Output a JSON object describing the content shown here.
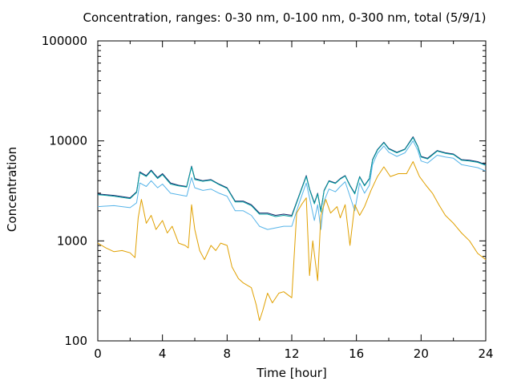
{
  "chart_data": {
    "type": "line",
    "title": "Concentration, ranges: 0-30 nm, 0-100 nm, 0-300 nm, total (5/9/1)",
    "xlabel": "Time [hour]",
    "ylabel": "Concentration",
    "xlim": [
      0,
      24
    ],
    "ylim": [
      100,
      100000
    ],
    "yscale": "log",
    "xticks": [
      "0",
      "4",
      "8",
      "12",
      "16",
      "20",
      "24"
    ],
    "yticks": [
      "100",
      "1000",
      "10000",
      "100000"
    ],
    "grid": false,
    "series": [
      {
        "color": "#1a2a6c",
        "points": [
          [
            0,
            2950
          ],
          [
            1,
            2850
          ],
          [
            2,
            2700
          ],
          [
            2.4,
            3100
          ],
          [
            2.6,
            4900
          ],
          [
            3,
            4500
          ],
          [
            3.3,
            5100
          ],
          [
            3.7,
            4300
          ],
          [
            4,
            4700
          ],
          [
            4.5,
            3800
          ],
          [
            5,
            3600
          ],
          [
            5.5,
            3500
          ],
          [
            5.8,
            5600
          ],
          [
            6,
            4200
          ],
          [
            6.5,
            4000
          ],
          [
            7,
            4100
          ],
          [
            7.5,
            3700
          ],
          [
            8,
            3400
          ],
          [
            8.5,
            2500
          ],
          [
            9,
            2500
          ],
          [
            9.5,
            2300
          ],
          [
            10,
            1900
          ],
          [
            10.5,
            1900
          ],
          [
            11,
            1800
          ],
          [
            11.5,
            1850
          ],
          [
            12,
            1800
          ],
          [
            12.5,
            3000
          ],
          [
            12.9,
            4500
          ],
          [
            13.1,
            3300
          ],
          [
            13.4,
            2400
          ],
          [
            13.6,
            3000
          ],
          [
            13.8,
            2000
          ],
          [
            14,
            3200
          ],
          [
            14.3,
            4000
          ],
          [
            14.7,
            3800
          ],
          [
            15,
            4200
          ],
          [
            15.3,
            4500
          ],
          [
            15.6,
            3600
          ],
          [
            15.9,
            3000
          ],
          [
            16.2,
            4400
          ],
          [
            16.5,
            3600
          ],
          [
            16.8,
            4200
          ],
          [
            17,
            6500
          ],
          [
            17.3,
            8200
          ],
          [
            17.7,
            9700
          ],
          [
            18,
            8400
          ],
          [
            18.5,
            7700
          ],
          [
            19,
            8300
          ],
          [
            19.5,
            11000
          ],
          [
            19.8,
            8800
          ],
          [
            20,
            7000
          ],
          [
            20.4,
            6700
          ],
          [
            21,
            8000
          ],
          [
            21.5,
            7600
          ],
          [
            22,
            7400
          ],
          [
            22.5,
            6500
          ],
          [
            23,
            6400
          ],
          [
            23.5,
            6200
          ],
          [
            24,
            5800
          ]
        ]
      },
      {
        "color": "#00a0a0",
        "points": [
          [
            0,
            2900
          ],
          [
            1,
            2800
          ],
          [
            2,
            2650
          ],
          [
            2.4,
            3050
          ],
          [
            2.6,
            4800
          ],
          [
            3,
            4400
          ],
          [
            3.3,
            5000
          ],
          [
            3.7,
            4200
          ],
          [
            4,
            4600
          ],
          [
            4.5,
            3700
          ],
          [
            5,
            3550
          ],
          [
            5.5,
            3450
          ],
          [
            5.8,
            5500
          ],
          [
            6,
            4100
          ],
          [
            6.5,
            3950
          ],
          [
            7,
            4050
          ],
          [
            7.5,
            3650
          ],
          [
            8,
            3350
          ],
          [
            8.5,
            2450
          ],
          [
            9,
            2450
          ],
          [
            9.5,
            2250
          ],
          [
            10,
            1850
          ],
          [
            10.5,
            1850
          ],
          [
            11,
            1750
          ],
          [
            11.5,
            1800
          ],
          [
            12,
            1750
          ],
          [
            12.5,
            2950
          ],
          [
            12.9,
            4400
          ],
          [
            13.1,
            3250
          ],
          [
            13.4,
            2350
          ],
          [
            13.6,
            2950
          ],
          [
            13.8,
            1950
          ],
          [
            14,
            3150
          ],
          [
            14.3,
            3950
          ],
          [
            14.7,
            3750
          ],
          [
            15,
            4150
          ],
          [
            15.3,
            4450
          ],
          [
            15.6,
            3550
          ],
          [
            15.9,
            2950
          ],
          [
            16.2,
            4350
          ],
          [
            16.5,
            3550
          ],
          [
            16.8,
            4150
          ],
          [
            17,
            6400
          ],
          [
            17.3,
            8100
          ],
          [
            17.7,
            9600
          ],
          [
            18,
            8300
          ],
          [
            18.5,
            7600
          ],
          [
            19,
            8200
          ],
          [
            19.5,
            10800
          ],
          [
            19.8,
            8700
          ],
          [
            20,
            6900
          ],
          [
            20.4,
            6600
          ],
          [
            21,
            7900
          ],
          [
            21.5,
            7500
          ],
          [
            22,
            7300
          ],
          [
            22.5,
            6400
          ],
          [
            23,
            6300
          ],
          [
            23.5,
            6100
          ],
          [
            24,
            5700
          ]
        ]
      },
      {
        "color": "#56b4e9",
        "points": [
          [
            0,
            2200
          ],
          [
            1,
            2250
          ],
          [
            2,
            2150
          ],
          [
            2.4,
            2400
          ],
          [
            2.6,
            3800
          ],
          [
            3,
            3500
          ],
          [
            3.3,
            4000
          ],
          [
            3.7,
            3400
          ],
          [
            4,
            3700
          ],
          [
            4.5,
            3000
          ],
          [
            5,
            2900
          ],
          [
            5.5,
            2800
          ],
          [
            5.8,
            4300
          ],
          [
            6,
            3400
          ],
          [
            6.5,
            3200
          ],
          [
            7,
            3300
          ],
          [
            7.5,
            3000
          ],
          [
            8,
            2800
          ],
          [
            8.5,
            2000
          ],
          [
            9,
            2000
          ],
          [
            9.5,
            1800
          ],
          [
            10,
            1400
          ],
          [
            10.5,
            1300
          ],
          [
            11,
            1350
          ],
          [
            11.5,
            1400
          ],
          [
            12,
            1400
          ],
          [
            12.5,
            2500
          ],
          [
            12.9,
            3800
          ],
          [
            13.1,
            2700
          ],
          [
            13.4,
            1600
          ],
          [
            13.6,
            2300
          ],
          [
            13.8,
            1300
          ],
          [
            14,
            2500
          ],
          [
            14.3,
            3300
          ],
          [
            14.7,
            3100
          ],
          [
            15,
            3500
          ],
          [
            15.3,
            3900
          ],
          [
            15.6,
            2800
          ],
          [
            15.9,
            2000
          ],
          [
            16.2,
            3800
          ],
          [
            16.5,
            3000
          ],
          [
            16.8,
            3600
          ],
          [
            17,
            5800
          ],
          [
            17.3,
            7500
          ],
          [
            17.7,
            8900
          ],
          [
            18,
            7700
          ],
          [
            18.5,
            7000
          ],
          [
            19,
            7600
          ],
          [
            19.5,
            10000
          ],
          [
            19.8,
            8000
          ],
          [
            20,
            6300
          ],
          [
            20.4,
            6000
          ],
          [
            21,
            7200
          ],
          [
            21.5,
            6900
          ],
          [
            22,
            6700
          ],
          [
            22.5,
            5800
          ],
          [
            23,
            5600
          ],
          [
            23.5,
            5400
          ],
          [
            24,
            5000
          ]
        ]
      },
      {
        "color": "#e0a000",
        "points": [
          [
            0,
            950
          ],
          [
            0.5,
            850
          ],
          [
            1,
            780
          ],
          [
            1.5,
            800
          ],
          [
            2,
            760
          ],
          [
            2.3,
            680
          ],
          [
            2.5,
            1700
          ],
          [
            2.7,
            2600
          ],
          [
            3,
            1500
          ],
          [
            3.3,
            1800
          ],
          [
            3.6,
            1300
          ],
          [
            4,
            1600
          ],
          [
            4.3,
            1200
          ],
          [
            4.6,
            1400
          ],
          [
            5,
            950
          ],
          [
            5.4,
            900
          ],
          [
            5.6,
            850
          ],
          [
            5.8,
            2300
          ],
          [
            6,
            1300
          ],
          [
            6.3,
            800
          ],
          [
            6.6,
            650
          ],
          [
            7,
            900
          ],
          [
            7.3,
            800
          ],
          [
            7.6,
            950
          ],
          [
            8,
            900
          ],
          [
            8.3,
            550
          ],
          [
            8.7,
            420
          ],
          [
            9,
            380
          ],
          [
            9.5,
            340
          ],
          [
            9.8,
            230
          ],
          [
            10,
            160
          ],
          [
            10.2,
            200
          ],
          [
            10.5,
            300
          ],
          [
            10.8,
            240
          ],
          [
            11.2,
            300
          ],
          [
            11.5,
            310
          ],
          [
            12,
            270
          ],
          [
            12.3,
            1900
          ],
          [
            12.6,
            2300
          ],
          [
            12.9,
            2700
          ],
          [
            13.1,
            450
          ],
          [
            13.3,
            1000
          ],
          [
            13.6,
            400
          ],
          [
            13.8,
            1800
          ],
          [
            14.1,
            2600
          ],
          [
            14.4,
            1900
          ],
          [
            14.8,
            2200
          ],
          [
            15,
            1700
          ],
          [
            15.3,
            2300
          ],
          [
            15.6,
            900
          ],
          [
            15.9,
            2300
          ],
          [
            16.2,
            1800
          ],
          [
            16.5,
            2200
          ],
          [
            16.9,
            3200
          ],
          [
            17.3,
            4400
          ],
          [
            17.7,
            5500
          ],
          [
            18.1,
            4400
          ],
          [
            18.6,
            4700
          ],
          [
            19.1,
            4700
          ],
          [
            19.5,
            6200
          ],
          [
            19.9,
            4400
          ],
          [
            20.3,
            3600
          ],
          [
            20.7,
            3000
          ],
          [
            21.1,
            2300
          ],
          [
            21.5,
            1800
          ],
          [
            22,
            1500
          ],
          [
            22.5,
            1200
          ],
          [
            23,
            1000
          ],
          [
            23.5,
            750
          ],
          [
            24,
            650
          ]
        ]
      }
    ]
  }
}
